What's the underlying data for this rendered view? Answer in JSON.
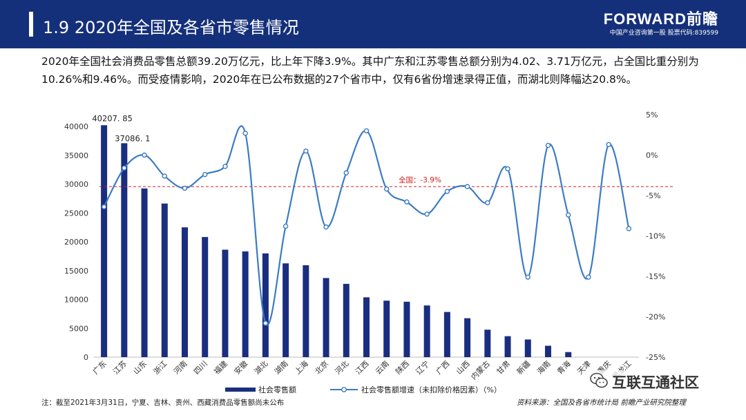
{
  "header": {
    "title": "1.9  2020年全国及各省市零售情况",
    "brand_name": "FORWARD前瞻",
    "brand_tagline": "中国产业咨询第一股 股票代码:839599"
  },
  "summary": "2020年全国社会消费品零售总额39.20万亿元，比上年下降3.9%。其中广东和江苏零售总额分别为4.02、3.71万亿元，占全国比重分别为10.26%和9.46%。而受疫情影响，2020年在已公布数据的27个省市中，仅有6省份增速录得正值，而湖北则降幅达20.8%。",
  "note": "注：截至2021年3月31日，宁夏、吉林、贵州、西藏消费品零售额尚未公布",
  "source": "资料来源：全国及各省市统计局 前瞻产业研究院整理",
  "watermark": {
    "badge_text": "互联互通社区",
    "icon": "wechat-icon"
  },
  "colors": {
    "header_bg": "#15307a",
    "bar": "#1a2e80",
    "line": "#3b7bc4",
    "reference_line": "#cc1f1f",
    "axis_text": "#333333"
  },
  "chart_data": {
    "type": "bar",
    "categories": [
      "广东",
      "江苏",
      "山东",
      "浙江",
      "河南",
      "四川",
      "福建",
      "安徽",
      "湖北",
      "湖南",
      "上海",
      "北京",
      "河北",
      "江西",
      "云南",
      "陕西",
      "辽宁",
      "广西",
      "山西",
      "内蒙古",
      "甘肃",
      "新疆",
      "海南",
      "青海",
      "天津",
      "重庆",
      "黑龙江"
    ],
    "series": [
      {
        "name": "社会零售额",
        "type": "bar",
        "axis": "left",
        "values": [
          40207.85,
          37086.1,
          29248,
          26630,
          22503,
          20825,
          18627,
          18334,
          17985,
          16258,
          15933,
          13716,
          12706,
          10371,
          9792,
          9606,
          8960,
          7831,
          6746,
          4760,
          3633,
          3062,
          1975,
          877,
          null,
          null,
          null
        ]
      },
      {
        "name": "社会零售额增速（未扣除价格因素）（%）",
        "type": "line",
        "axis": "right",
        "values": [
          -6.4,
          -1.6,
          0.0,
          -2.6,
          -4.1,
          -2.4,
          -1.4,
          2.7,
          -20.8,
          -8.8,
          0.5,
          -8.9,
          -2.2,
          3.0,
          -4.2,
          -5.8,
          -7.3,
          -4.5,
          -3.9,
          -5.9,
          -1.7,
          -15.1,
          1.2,
          -7.4,
          -15.1,
          1.3,
          -9.1
        ]
      }
    ],
    "data_labels": [
      "40207. 85",
      "37086. 1"
    ],
    "reference_line": {
      "value": -3.9,
      "axis": "right",
      "label": "全国：-3.9%"
    },
    "y_left": {
      "min": 0,
      "max": 40000,
      "ticks": [
        "0",
        "5000",
        "10000",
        "15000",
        "20000",
        "25000",
        "30000",
        "35000",
        "40000"
      ]
    },
    "y_right": {
      "min": -25,
      "max": 5,
      "ticks": [
        "-25%",
        "-20%",
        "-15%",
        "-10%",
        "-5%",
        "0%",
        "5%"
      ]
    },
    "grid": false,
    "legend_position": "bottom"
  }
}
